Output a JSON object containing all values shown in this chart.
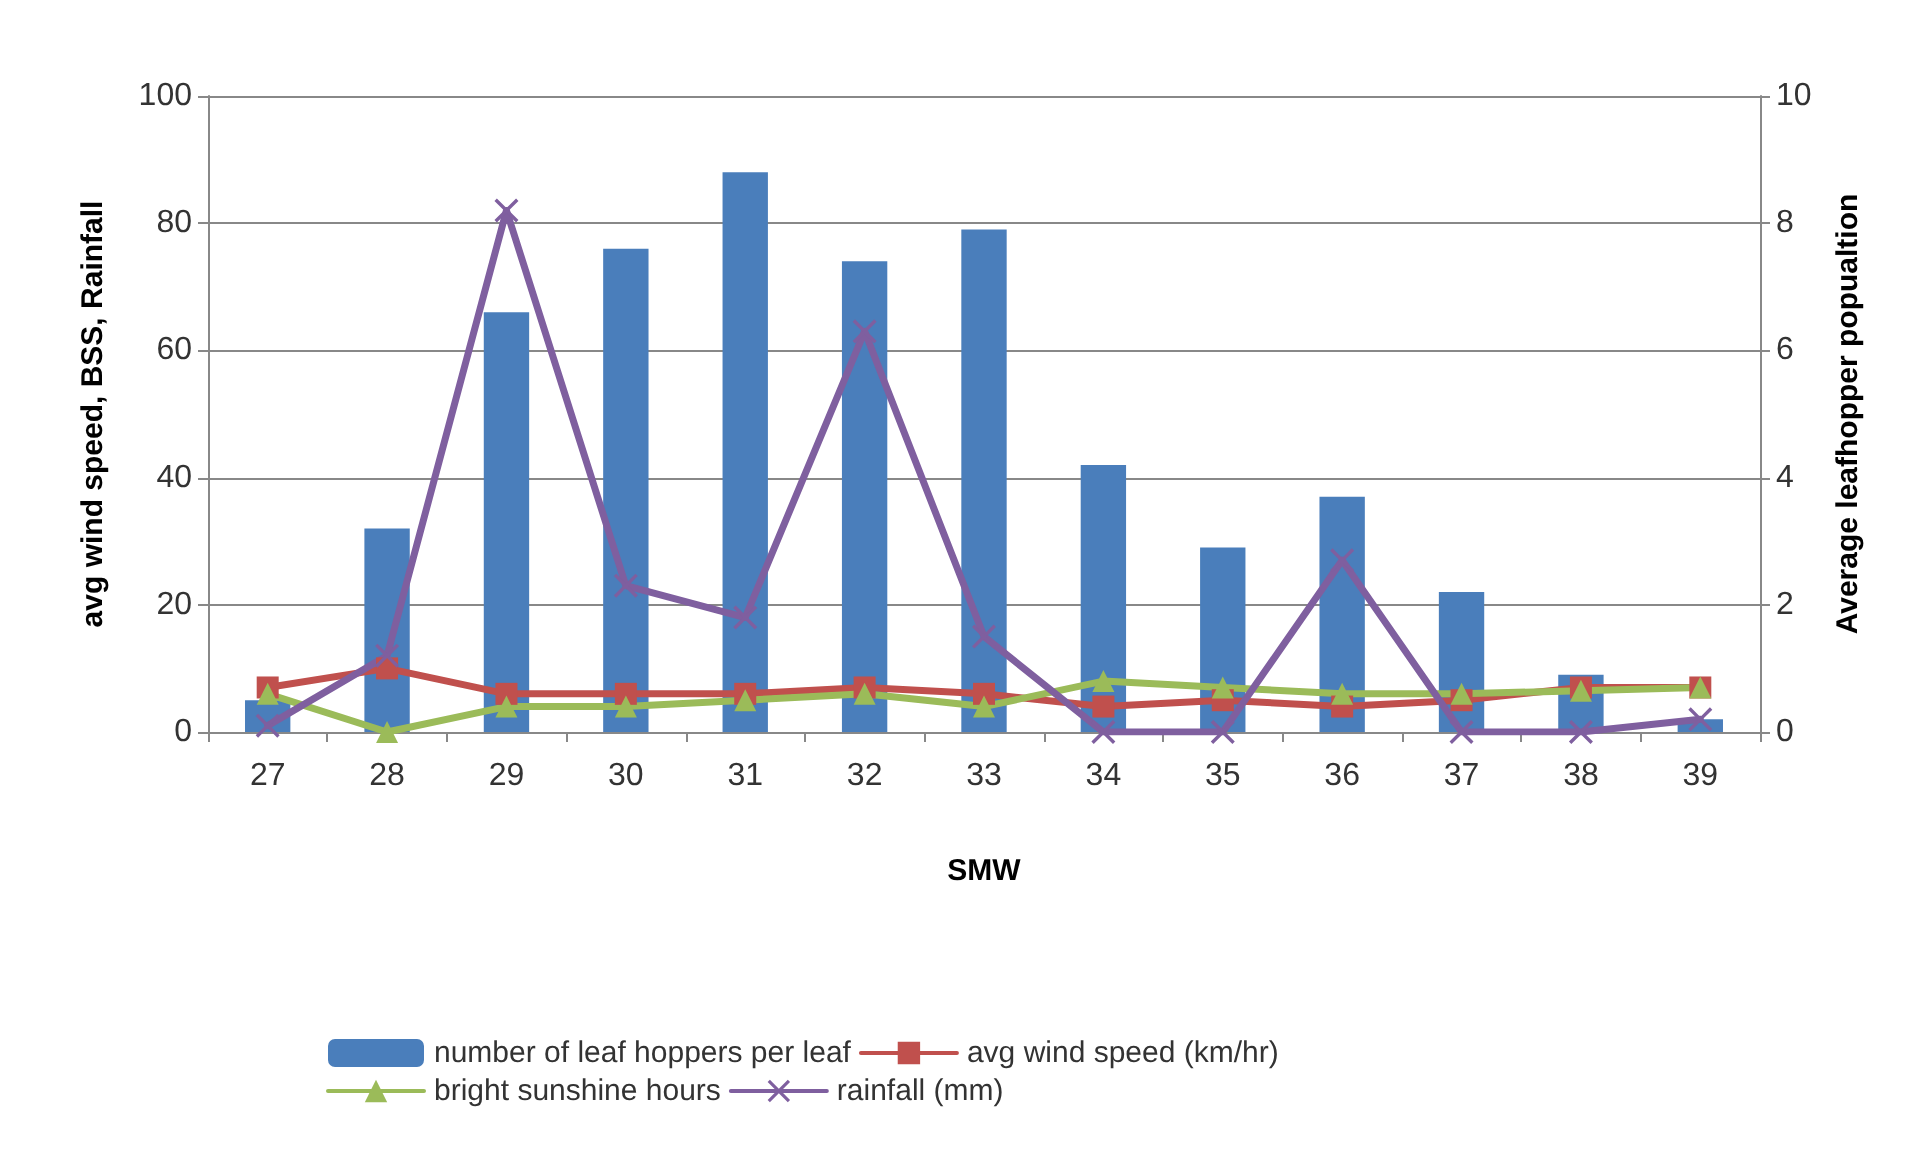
{
  "chart_data": {
    "type": "bar",
    "xlabel": "SMW",
    "ylabel": "avg wind speed, BSS, Rainfall",
    "y2label": "Average leafhopper popualtion",
    "categories": [
      "27",
      "28",
      "29",
      "30",
      "31",
      "32",
      "33",
      "34",
      "35",
      "36",
      "37",
      "38",
      "39"
    ],
    "series": [
      {
        "name": "number of leaf hoppers per leaf",
        "axis": "y2",
        "color": "#4a7ebb",
        "values": [
          0.5,
          3.2,
          6.6,
          7.6,
          8.8,
          7.4,
          7.9,
          4.2,
          2.9,
          3.7,
          2.2,
          0.9,
          0.2
        ]
      },
      {
        "name": "avg wind speed (km/hr)",
        "type": "line",
        "marker": "square",
        "color": "#c0504d",
        "values": [
          7,
          10,
          6,
          6,
          6,
          7,
          6,
          4,
          5,
          4,
          5,
          7,
          7
        ]
      },
      {
        "name": "bright sunshine hours",
        "type": "line",
        "marker": "triangle",
        "color": "#9bbb59",
        "values": [
          6,
          0,
          4,
          4,
          5,
          6,
          4,
          8,
          7,
          6,
          6,
          6.5,
          7
        ]
      },
      {
        "name": "rainfall (mm)",
        "type": "line",
        "marker": "cross",
        "color": "#7f5f9f",
        "values": [
          1,
          12,
          82,
          23,
          18,
          63,
          15,
          0,
          0,
          27,
          0,
          0,
          2
        ]
      }
    ],
    "ylim": [
      0,
      100
    ],
    "yticks": [
      0,
      20,
      40,
      60,
      80,
      100
    ],
    "y2lim": [
      0,
      10
    ],
    "y2ticks": [
      0,
      2,
      4,
      6,
      8,
      10
    ],
    "grid": "y",
    "legend": "bottom"
  }
}
